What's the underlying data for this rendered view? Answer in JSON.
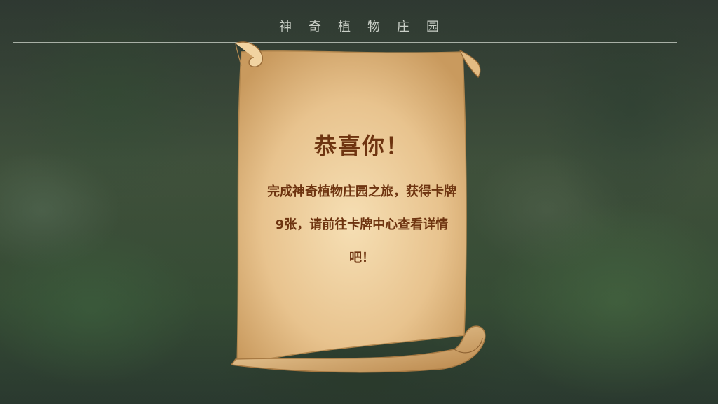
{
  "header": {
    "title": "神奇植物庄园"
  },
  "scroll": {
    "title": "恭喜你！",
    "message": "完成神奇植物庄园之旅，获得卡牌9张，请前往卡牌中心查看详情吧！"
  },
  "colors": {
    "parchment": "#e8c89a",
    "text": "#6e3410",
    "header_text": "#c9cfc7"
  }
}
